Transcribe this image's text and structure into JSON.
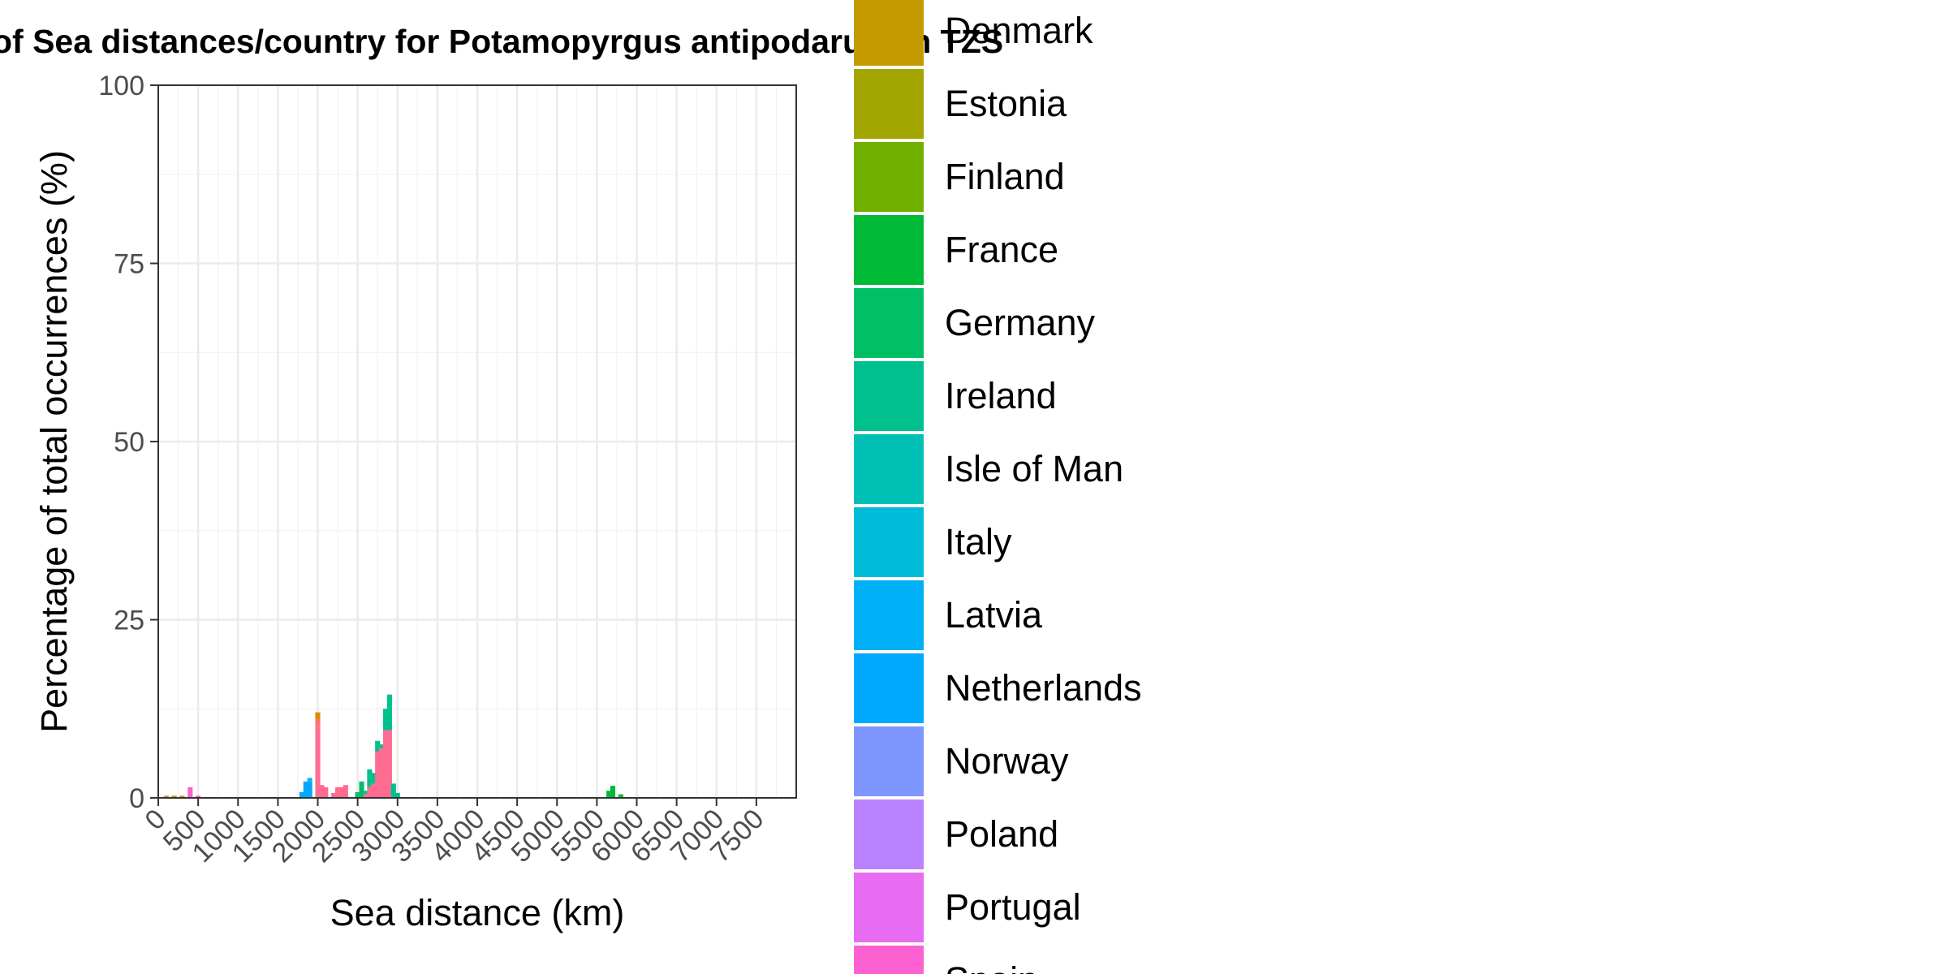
{
  "chart_data": {
    "type": "bar",
    "stacked": true,
    "title": "of Sea distances/country for Potamopyrgus antipodarum in TZS",
    "xlabel": "Sea distance (km)",
    "ylabel": "Percentage of total occurrences (%)",
    "xlim": [
      0,
      8000
    ],
    "ylim": [
      0,
      100
    ],
    "x_ticks": [
      "0",
      "500",
      "1000",
      "1500",
      "2000",
      "2500",
      "3000",
      "3500",
      "4000",
      "4500",
      "5000",
      "5500",
      "6000",
      "6500",
      "7000",
      "7500"
    ],
    "y_ticks": [
      "0",
      "25",
      "50",
      "75",
      "100"
    ],
    "grid": true,
    "bin_width": 100,
    "legend": {
      "placement": "right",
      "entries": [
        {
          "name": "Denmark",
          "color": "#C49A00"
        },
        {
          "name": "Estonia",
          "color": "#A3A500"
        },
        {
          "name": "Finland",
          "color": "#72B000"
        },
        {
          "name": "France",
          "color": "#00BA38"
        },
        {
          "name": "Germany",
          "color": "#00BF65"
        },
        {
          "name": "Ireland",
          "color": "#00C08D"
        },
        {
          "name": "Isle of Man",
          "color": "#00BFB4"
        },
        {
          "name": "Italy",
          "color": "#00BCD8"
        },
        {
          "name": "Latvia",
          "color": "#00B0F6"
        },
        {
          "name": "Netherlands",
          "color": "#00A9FF"
        },
        {
          "name": "Norway",
          "color": "#7F96FF"
        },
        {
          "name": "Poland",
          "color": "#B983FF"
        },
        {
          "name": "Portugal",
          "color": "#E76BF3"
        },
        {
          "name": "Spain",
          "color": "#FD61D1"
        }
      ]
    },
    "bars": [
      {
        "x": 100,
        "segments": [
          [
            "#C49A00",
            0.3
          ]
        ]
      },
      {
        "x": 200,
        "segments": [
          [
            "#A3A500",
            0.3
          ]
        ]
      },
      {
        "x": 300,
        "segments": [
          [
            "#C49A00",
            0.3
          ]
        ]
      },
      {
        "x": 400,
        "segments": [
          [
            "#FD61D1",
            1.5
          ]
        ]
      },
      {
        "x": 500,
        "segments": [
          [
            "#FD61D1",
            0.3
          ]
        ]
      },
      {
        "x": 1800,
        "segments": [
          [
            "#00A9FF",
            0.8
          ]
        ]
      },
      {
        "x": 1850,
        "segments": [
          [
            "#00A9FF",
            2.3
          ]
        ]
      },
      {
        "x": 1900,
        "segments": [
          [
            "#00A9FF",
            2.3
          ],
          [
            "#00BCD8",
            0.5
          ]
        ]
      },
      {
        "x": 2000,
        "segments": [
          [
            "#FF6C91",
            10
          ],
          [
            "#F8766D",
            1
          ],
          [
            "#E58700",
            1
          ]
        ]
      },
      {
        "x": 2050,
        "segments": [
          [
            "#FF6C91",
            1.8
          ]
        ]
      },
      {
        "x": 2100,
        "segments": [
          [
            "#FF6C91",
            1.5
          ]
        ]
      },
      {
        "x": 2200,
        "segments": [
          [
            "#FF6C91",
            0.7
          ]
        ]
      },
      {
        "x": 2250,
        "segments": [
          [
            "#FF6C91",
            1.5
          ]
        ]
      },
      {
        "x": 2300,
        "segments": [
          [
            "#FF6C91",
            1.5
          ]
        ]
      },
      {
        "x": 2350,
        "segments": [
          [
            "#FF6C91",
            1.8
          ]
        ]
      },
      {
        "x": 2500,
        "segments": [
          [
            "#00BF65",
            0.8
          ]
        ]
      },
      {
        "x": 2550,
        "segments": [
          [
            "#00BF65",
            2.3
          ]
        ]
      },
      {
        "x": 2600,
        "segments": [
          [
            "#FF6C91",
            0.5
          ],
          [
            "#00C08D",
            0.5
          ]
        ]
      },
      {
        "x": 2650,
        "segments": [
          [
            "#FF6C91",
            1.5
          ],
          [
            "#00C08D",
            2.5
          ]
        ]
      },
      {
        "x": 2700,
        "segments": [
          [
            "#FF6C91",
            2
          ],
          [
            "#00C08D",
            1.5
          ]
        ]
      },
      {
        "x": 2750,
        "segments": [
          [
            "#FF6C91",
            6.5
          ],
          [
            "#00C08D",
            1.5
          ]
        ]
      },
      {
        "x": 2800,
        "segments": [
          [
            "#FF6C91",
            7
          ],
          [
            "#00C08D",
            0.5
          ]
        ]
      },
      {
        "x": 2850,
        "segments": [
          [
            "#FF6C91",
            9.5
          ],
          [
            "#00C08D",
            3
          ]
        ]
      },
      {
        "x": 2900,
        "segments": [
          [
            "#FF6C91",
            9.5
          ],
          [
            "#00C08D",
            5
          ]
        ]
      },
      {
        "x": 2950,
        "segments": [
          [
            "#00C08D",
            2
          ]
        ]
      },
      {
        "x": 3000,
        "segments": [
          [
            "#00C08D",
            0.7
          ]
        ]
      },
      {
        "x": 5650,
        "segments": [
          [
            "#00BA38",
            1
          ]
        ]
      },
      {
        "x": 5700,
        "segments": [
          [
            "#00BA38",
            1.7
          ]
        ]
      },
      {
        "x": 5800,
        "segments": [
          [
            "#00BA38",
            0.5
          ]
        ]
      }
    ]
  }
}
